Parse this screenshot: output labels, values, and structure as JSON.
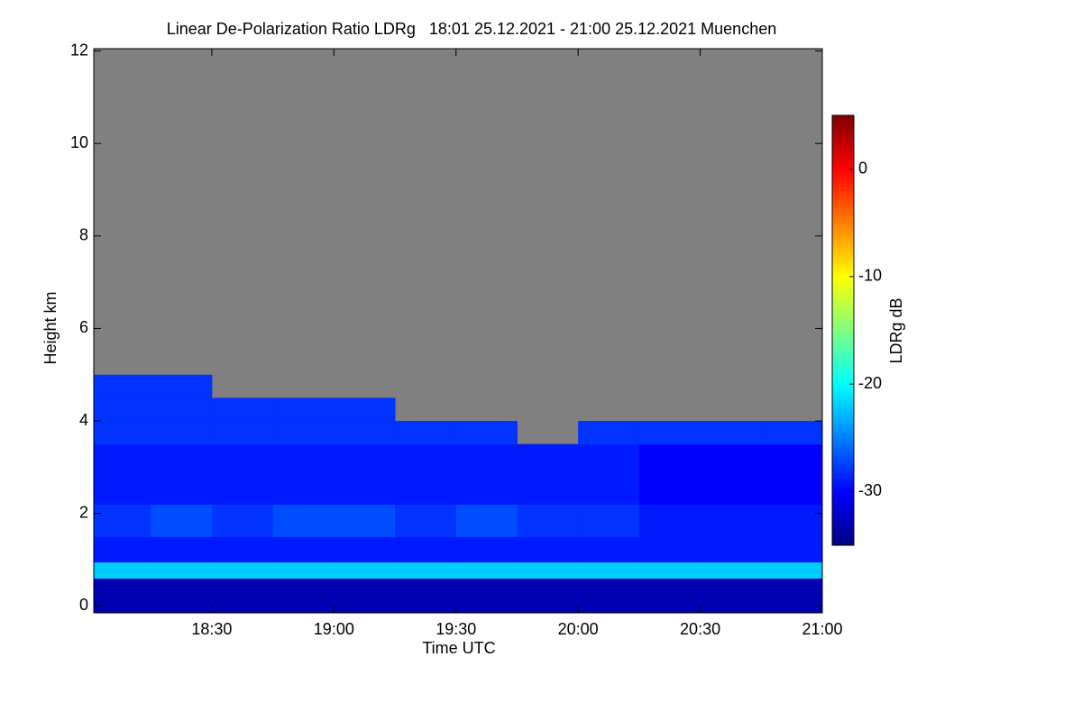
{
  "chart_data": {
    "type": "heatmap",
    "title": "Linear De-Polarization Ratio LDRg   18:01 25.12.2021 - 21:00 25.12.2021 Muenchen",
    "xlabel": "Time UTC",
    "ylabel": "Height km",
    "clabel": "LDRg dB",
    "xlim": [
      "18:01",
      "21:00"
    ],
    "xticks": [
      "18:30",
      "19:00",
      "19:30",
      "20:00",
      "20:30",
      "21:00"
    ],
    "ylim": [
      -0.15,
      12.05
    ],
    "yticks": [
      0,
      2,
      4,
      6,
      8,
      10,
      12
    ],
    "clim": [
      -35,
      5
    ],
    "cticks": [
      0,
      -10,
      -20,
      -30
    ],
    "colormap": "jet",
    "nan_color": "#808080",
    "x": [
      "18:01",
      "18:15",
      "18:30",
      "18:45",
      "19:00",
      "19:15",
      "19:30",
      "19:45",
      "20:00",
      "20:15",
      "20:30",
      "20:45",
      "21:00"
    ],
    "y": [
      -0.15,
      0.6,
      0.95,
      1.5,
      2.2,
      3.0,
      3.5,
      4.0,
      4.5,
      5.0,
      12.05
    ],
    "z": [
      [
        -33,
        -33,
        -33,
        -33,
        -33,
        -33,
        -33,
        -33,
        -33,
        -33,
        -33,
        -33
      ],
      [
        -22,
        -22,
        -22,
        -22,
        -22,
        -22,
        -22,
        -22,
        -22,
        -22,
        -22,
        -22
      ],
      [
        -29,
        -29,
        -29,
        -29,
        -29,
        -29,
        -29,
        -29,
        -29,
        -29,
        -29,
        -29
      ],
      [
        -28,
        -27,
        -28,
        -27,
        -27,
        -28,
        -27,
        -28,
        -28,
        -29,
        -29,
        -29
      ],
      [
        -29,
        -29,
        -29,
        -29,
        -29,
        -29,
        -29,
        -29,
        -29,
        -30,
        -30,
        -30
      ],
      [
        -29,
        -29,
        -29,
        -29,
        -29,
        -29,
        -29,
        -29,
        -29,
        -30,
        -30,
        -30
      ],
      [
        -28,
        -28,
        -28,
        -28,
        -28,
        -28,
        -28,
        null,
        -28,
        -28,
        -28,
        -28
      ],
      [
        -28,
        -28,
        -28,
        -28,
        -28,
        null,
        null,
        null,
        null,
        null,
        null,
        null
      ],
      [
        -28,
        -28,
        null,
        null,
        null,
        null,
        null,
        null,
        null,
        null,
        null,
        null
      ],
      [
        null,
        null,
        null,
        null,
        null,
        null,
        null,
        null,
        null,
        null,
        null,
        null
      ]
    ]
  }
}
